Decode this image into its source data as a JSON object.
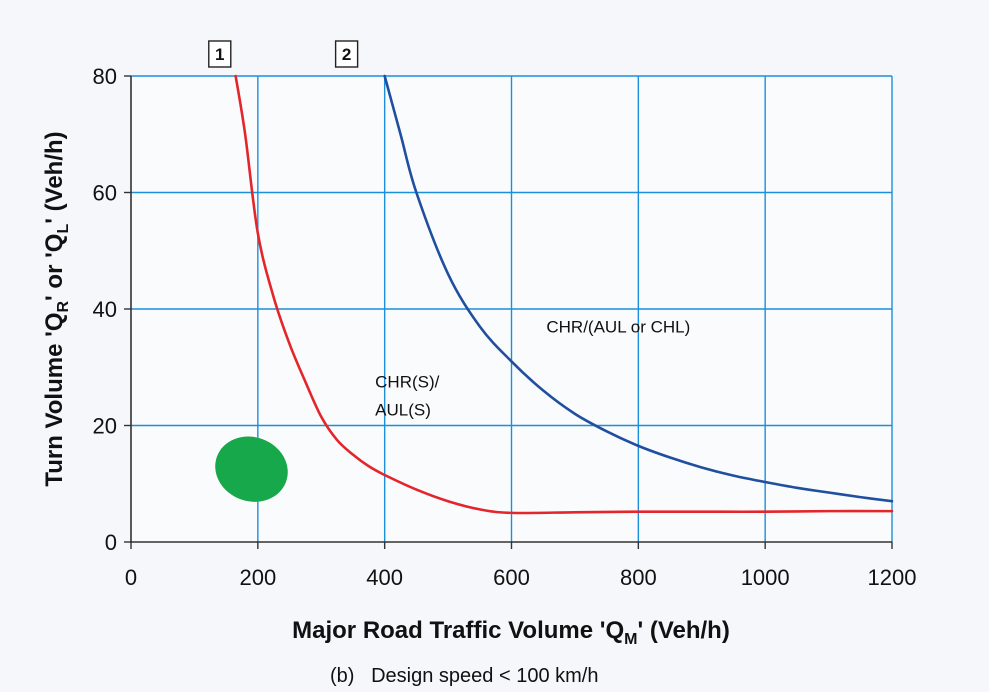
{
  "chart_data": {
    "type": "line",
    "xlabel": {
      "main": "Major Road Traffic Volume 'Q",
      "sub": "M",
      "tail": "' (Veh/h)"
    },
    "ylabel": {
      "part1": "Turn Volume 'Q",
      "sub1": "R",
      "part2": "' or 'Q",
      "sub2": "L",
      "part3": "' (Veh/h)"
    },
    "xlim": [
      0,
      1200
    ],
    "ylim": [
      0,
      80
    ],
    "xticks": [
      0,
      200,
      400,
      600,
      800,
      1000,
      1200
    ],
    "yticks": [
      0,
      20,
      40,
      60,
      80
    ],
    "grid": true,
    "series": [
      {
        "color": "#e3262b",
        "x": [
          165,
          180,
          200,
          225,
          250,
          275,
          300,
          325,
          350,
          375,
          400,
          450,
          500,
          550,
          600,
          700,
          800,
          900,
          1000,
          1100,
          1200
        ],
        "y": [
          80,
          70,
          53,
          42,
          34,
          27.5,
          21.5,
          17.5,
          15,
          13,
          11.5,
          9,
          7,
          5.6,
          5,
          5.1,
          5.2,
          5.2,
          5.2,
          5.3,
          5.3
        ]
      },
      {
        "color": "#1f4f9e",
        "x": [
          400,
          425,
          450,
          500,
          550,
          600,
          650,
          700,
          750,
          800,
          850,
          900,
          950,
          1000,
          1050,
          1100,
          1150,
          1200
        ],
        "y": [
          80,
          70,
          60,
          46,
          37,
          31,
          26,
          22,
          19,
          16.5,
          14.5,
          12.8,
          11.4,
          10.3,
          9.3,
          8.5,
          7.7,
          7
        ]
      }
    ],
    "region_labels": [
      {
        "lines": [
          "CHR(S)/",
          "AUL(S)"
        ],
        "x": 385,
        "y": 26.5
      },
      {
        "lines": [
          "CHR/(AUL or CHL)"
        ],
        "x": 655,
        "y": 36
      }
    ],
    "curve_labels": [
      {
        "text": "1",
        "x": 140
      },
      {
        "text": "2",
        "x": 340
      }
    ],
    "ellipse": {
      "cx": 190,
      "cy": 12.5,
      "rx": 58,
      "ry": 5.5,
      "color": "#16a84a"
    },
    "caption": "(b)   Design speed < 100 km/h"
  }
}
